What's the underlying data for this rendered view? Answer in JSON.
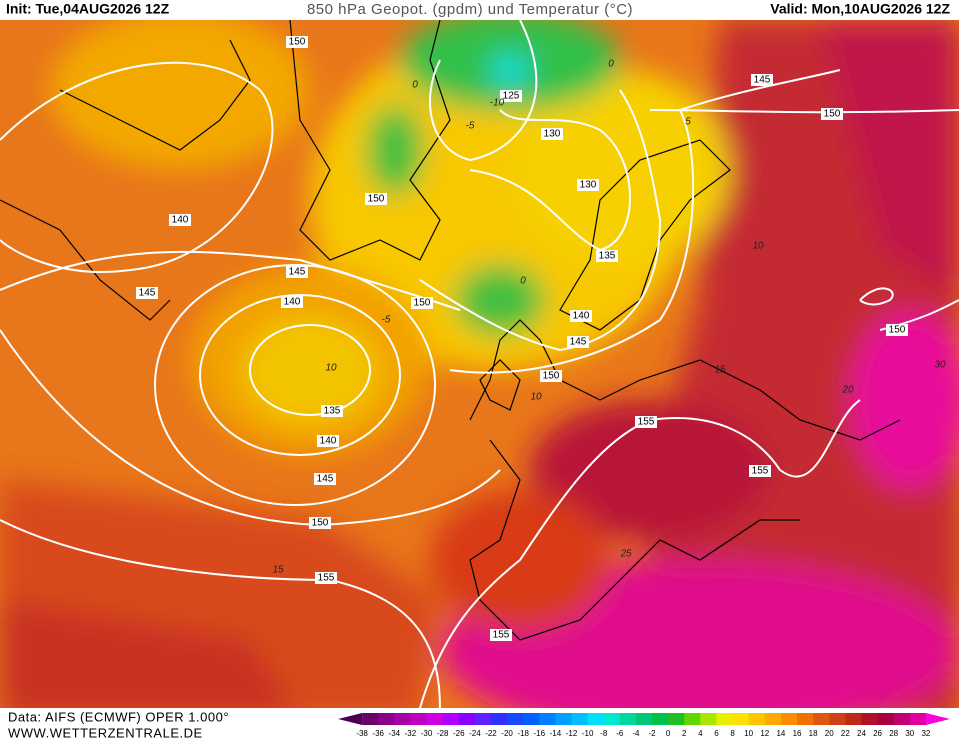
{
  "header": {
    "init": "Init: Tue,04AUG2026 12Z",
    "title": "850 hPa Geopot. (gpdm) und Temperatur (°C)",
    "valid": "Valid: Mon,10AUG2026 12Z"
  },
  "map": {
    "geopotential_labels": [
      150,
      145,
      150,
      125,
      130,
      150,
      130,
      140,
      145,
      145,
      140,
      150,
      135,
      140,
      145,
      150,
      135,
      140,
      145,
      150,
      155,
      155,
      155,
      150,
      155
    ],
    "temperature_labels": [
      -10,
      -5,
      0,
      0,
      5,
      0,
      -5,
      10,
      10,
      15,
      20,
      25,
      30,
      10,
      15
    ]
  },
  "colorbar": {
    "labels": [
      -38,
      -36,
      -34,
      -32,
      -30,
      -28,
      -26,
      -24,
      -22,
      -20,
      -18,
      -16,
      -14,
      -12,
      -10,
      -8,
      -6,
      -4,
      -2,
      0,
      2,
      4,
      6,
      8,
      10,
      12,
      14,
      16,
      18,
      20,
      22,
      24,
      26,
      28,
      30,
      32
    ],
    "colors": [
      "#4a0050",
      "#6a006a",
      "#8a008a",
      "#a600a6",
      "#c000c0",
      "#d000e0",
      "#b000ff",
      "#8a00ff",
      "#6020ff",
      "#3030ff",
      "#1848ff",
      "#0060ff",
      "#0080ff",
      "#00a0ff",
      "#00c0ff",
      "#00e0ff",
      "#00e8d0",
      "#00d8a0",
      "#00c878",
      "#00c050",
      "#20c020",
      "#60d800",
      "#a8e800",
      "#e8f000",
      "#ffe000",
      "#ffc400",
      "#ffa800",
      "#ff8c00",
      "#f07000",
      "#e05810",
      "#d04018",
      "#c02818",
      "#b01028",
      "#a80040",
      "#c00070",
      "#e000a0",
      "#ff00e0"
    ]
  },
  "footer": {
    "data": "Data: AIFS (ECMWF) OPER 1.000°",
    "site": "WWW.WETTERZENTRALE.DE"
  }
}
